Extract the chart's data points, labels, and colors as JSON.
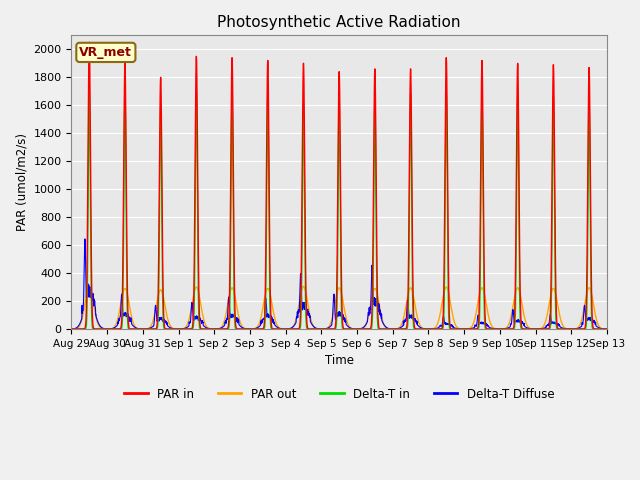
{
  "title": "Photosynthetic Active Radiation",
  "ylabel": "PAR (umol/m2/s)",
  "xlabel": "Time",
  "annotation": "VR_met",
  "ylim": [
    0,
    2100
  ],
  "plot_bg_color": "#e8e8e8",
  "fig_bg_color": "#f0f0f0",
  "series": {
    "par_in_color": "#ff0000",
    "par_out_color": "#ffa500",
    "delta_t_in_color": "#00dd00",
    "delta_t_diffuse_color": "#0000ff"
  },
  "legend_labels": [
    "PAR in",
    "PAR out",
    "Delta-T in",
    "Delta-T Diffuse"
  ],
  "xtick_labels": [
    "Aug 29",
    "Aug 30",
    "Aug 31",
    "Sep 1",
    "Sep 2",
    "Sep 3",
    "Sep 4",
    "Sep 5",
    "Sep 6",
    "Sep 7",
    "Sep 8",
    "Sep 9",
    "Sep 10",
    "Sep 11",
    "Sep 12",
    "Sep 13"
  ],
  "num_days": 15,
  "par_in_peaks": [
    2050,
    1900,
    1800,
    1950,
    1940,
    1920,
    1900,
    1840,
    1860,
    1860,
    1940,
    1920,
    1900,
    1890,
    1870
  ],
  "par_out_peaks": [
    300,
    290,
    280,
    300,
    295,
    290,
    305,
    295,
    290,
    295,
    300,
    295,
    295,
    290,
    295
  ],
  "delta_t_in_peaks": [
    1720,
    1720,
    1600,
    1700,
    1680,
    1670,
    1600,
    1650,
    1640,
    1680,
    1700,
    1680,
    1670,
    1660,
    1650
  ],
  "delta_t_diffuse_peaks": [
    650,
    250,
    170,
    190,
    230,
    220,
    400,
    250,
    460,
    210,
    90,
    100,
    140,
    105,
    170
  ]
}
